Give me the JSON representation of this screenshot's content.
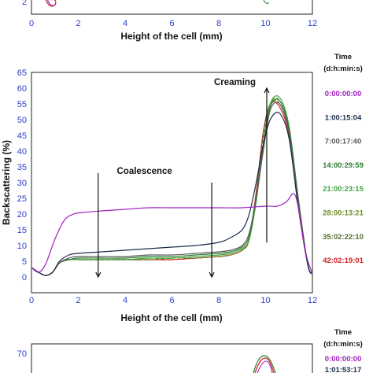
{
  "top_panel": {
    "xlabel": "Height of the cell (mm)",
    "x_ticks": [
      "0",
      "2",
      "4",
      "6",
      "8",
      "10",
      "12"
    ],
    "y_ticks": [
      "2"
    ]
  },
  "bottom_panel": {
    "y_ticks": [
      "70"
    ],
    "legend_title_line1": "Time",
    "legend_title_line2": "(d:h:min:s)",
    "legend": [
      "0:00:00:00",
      "1:01:53:17"
    ]
  },
  "chart_data": {
    "type": "line",
    "xlabel": "Height of the cell (mm)",
    "ylabel": "Backscattering (%)",
    "xlim": [
      0,
      12
    ],
    "ylim": [
      -5,
      65
    ],
    "x_ticks": [
      "0",
      "2",
      "4",
      "6",
      "8",
      "10",
      "12"
    ],
    "y_ticks": [
      "0",
      "5",
      "10",
      "15",
      "20",
      "25",
      "30",
      "35",
      "40",
      "45",
      "50",
      "55",
      "60",
      "65"
    ],
    "legend_title": [
      "Time",
      "(d:h:min:s)"
    ],
    "annotations": [
      {
        "text": "Creaming",
        "x": 10.1
      },
      {
        "text": "Coalescence",
        "x": 5.3
      }
    ],
    "arrows": [
      {
        "x": 2.85,
        "from_y": 33,
        "to_y": 0
      },
      {
        "x": 7.7,
        "from_y": 30,
        "to_y": 0
      },
      {
        "x": 10.05,
        "from_y": 11,
        "to_y": 60
      }
    ],
    "series": [
      {
        "name": "0:00:00:00",
        "color": "#a020c0",
        "x": [
          0,
          0.3,
          0.6,
          1.0,
          1.4,
          1.8,
          2.2,
          3,
          4,
          5,
          6,
          7,
          8,
          9,
          10,
          10.5,
          10.9,
          11.2,
          11.4,
          11.7,
          12
        ],
        "y": [
          3,
          1.5,
          4,
          12,
          18,
          20,
          20.5,
          21,
          21.5,
          22,
          22,
          22,
          22,
          22,
          22.5,
          22.5,
          24,
          26.5,
          22,
          8,
          1
        ]
      },
      {
        "name": "1:00:15:04",
        "color": "#1c2a4a",
        "x": [
          0,
          0.3,
          0.6,
          0.9,
          1.2,
          1.6,
          2,
          3,
          4,
          5,
          6,
          7,
          8,
          8.5,
          9,
          9.3,
          9.6,
          9.9,
          10.2,
          10.6,
          11,
          11.4,
          11.8,
          12
        ],
        "y": [
          3,
          1.5,
          0.5,
          1.5,
          5,
          7,
          7.5,
          8,
          8.5,
          9,
          9.5,
          10,
          11,
          12.5,
          15,
          20,
          30,
          42,
          50,
          52,
          44,
          22,
          4,
          1
        ]
      },
      {
        "name": "7:00:17:40",
        "color": "#5a5a5a",
        "x": [
          0,
          0.3,
          0.6,
          0.9,
          1.2,
          1.6,
          2,
          3,
          4,
          5,
          6,
          7,
          8,
          8.5,
          9,
          9.3,
          9.6,
          9.9,
          10.2,
          10.6,
          11,
          11.4,
          11.8,
          12
        ],
        "y": [
          3,
          1.5,
          0.5,
          1.5,
          4.5,
          6,
          6.5,
          6.5,
          6.5,
          7,
          7,
          7.5,
          8,
          8.5,
          10,
          14,
          25,
          40,
          53,
          55,
          46,
          24,
          4,
          1
        ]
      },
      {
        "name": "14:00:29:59",
        "color": "#2e7d32",
        "x": [
          0,
          0.3,
          0.6,
          0.9,
          1.2,
          1.6,
          2,
          3,
          4,
          5,
          6,
          7,
          8,
          8.5,
          9,
          9.3,
          9.6,
          9.9,
          10.2,
          10.6,
          11,
          11.4,
          11.8,
          12
        ],
        "y": [
          3,
          1.5,
          0.5,
          1.5,
          4.5,
          5.5,
          6,
          6,
          6,
          6.5,
          6.5,
          7,
          7.5,
          8,
          9.5,
          13,
          25,
          42,
          54,
          56,
          47,
          24,
          4,
          1
        ]
      },
      {
        "name": "21:00:23:15",
        "color": "#3fa63f",
        "x": [
          0,
          0.3,
          0.6,
          0.9,
          1.2,
          1.6,
          2,
          3,
          4,
          5,
          6,
          7,
          8,
          8.5,
          9,
          9.3,
          9.6,
          9.9,
          10.2,
          10.6,
          11,
          11.4,
          11.8,
          12
        ],
        "y": [
          3,
          1.5,
          0.5,
          1.5,
          4.5,
          5.5,
          5.5,
          5.5,
          5.5,
          6,
          6,
          6.5,
          7,
          7.5,
          9,
          12,
          24,
          42,
          55,
          57,
          48,
          25,
          4,
          1
        ]
      },
      {
        "name": "28:00:13:21",
        "color": "#6b8e23",
        "x": [
          0,
          0.3,
          0.6,
          0.9,
          1.2,
          1.6,
          2,
          3,
          4,
          5,
          6,
          7,
          8,
          8.5,
          9,
          9.3,
          9.6,
          9.9,
          10.2,
          10.6,
          11,
          11.4,
          11.8,
          12
        ],
        "y": [
          3,
          1.5,
          0.5,
          1.5,
          4.5,
          5.5,
          5.5,
          5.5,
          5.5,
          5.5,
          6,
          6,
          6.5,
          7,
          8.5,
          12,
          25,
          43,
          55,
          56,
          47,
          24,
          4,
          1
        ]
      },
      {
        "name": "35:02:22:10",
        "color": "#556b2f",
        "x": [
          0,
          0.3,
          0.6,
          0.9,
          1.2,
          1.6,
          2,
          3,
          4,
          5,
          6,
          7,
          8,
          8.5,
          9,
          9.3,
          9.6,
          9.9,
          10.2,
          10.6,
          11,
          11.4,
          11.8,
          12
        ],
        "y": [
          3,
          1.5,
          0.5,
          1.5,
          4.5,
          5.5,
          5.5,
          5.5,
          5.5,
          5.5,
          6,
          6,
          6.5,
          7,
          8.5,
          12,
          26,
          45,
          55,
          55,
          46,
          23,
          4,
          1
        ]
      },
      {
        "name": "42:02:19:01",
        "color": "#d42020",
        "x": [
          0,
          0.3,
          0.6,
          0.9,
          1.2,
          1.6,
          2,
          3,
          4,
          5,
          6,
          7,
          8,
          8.5,
          9,
          9.3,
          9.6,
          9.9,
          10.2,
          10.6,
          11,
          11.4,
          11.8,
          12
        ],
        "y": [
          3,
          1.5,
          0.5,
          1.5,
          4.5,
          5.5,
          5.5,
          5.5,
          5.5,
          5.5,
          5.5,
          6,
          6.5,
          7,
          8.5,
          12,
          27,
          46,
          55,
          54,
          45,
          22,
          4,
          1
        ]
      }
    ]
  }
}
